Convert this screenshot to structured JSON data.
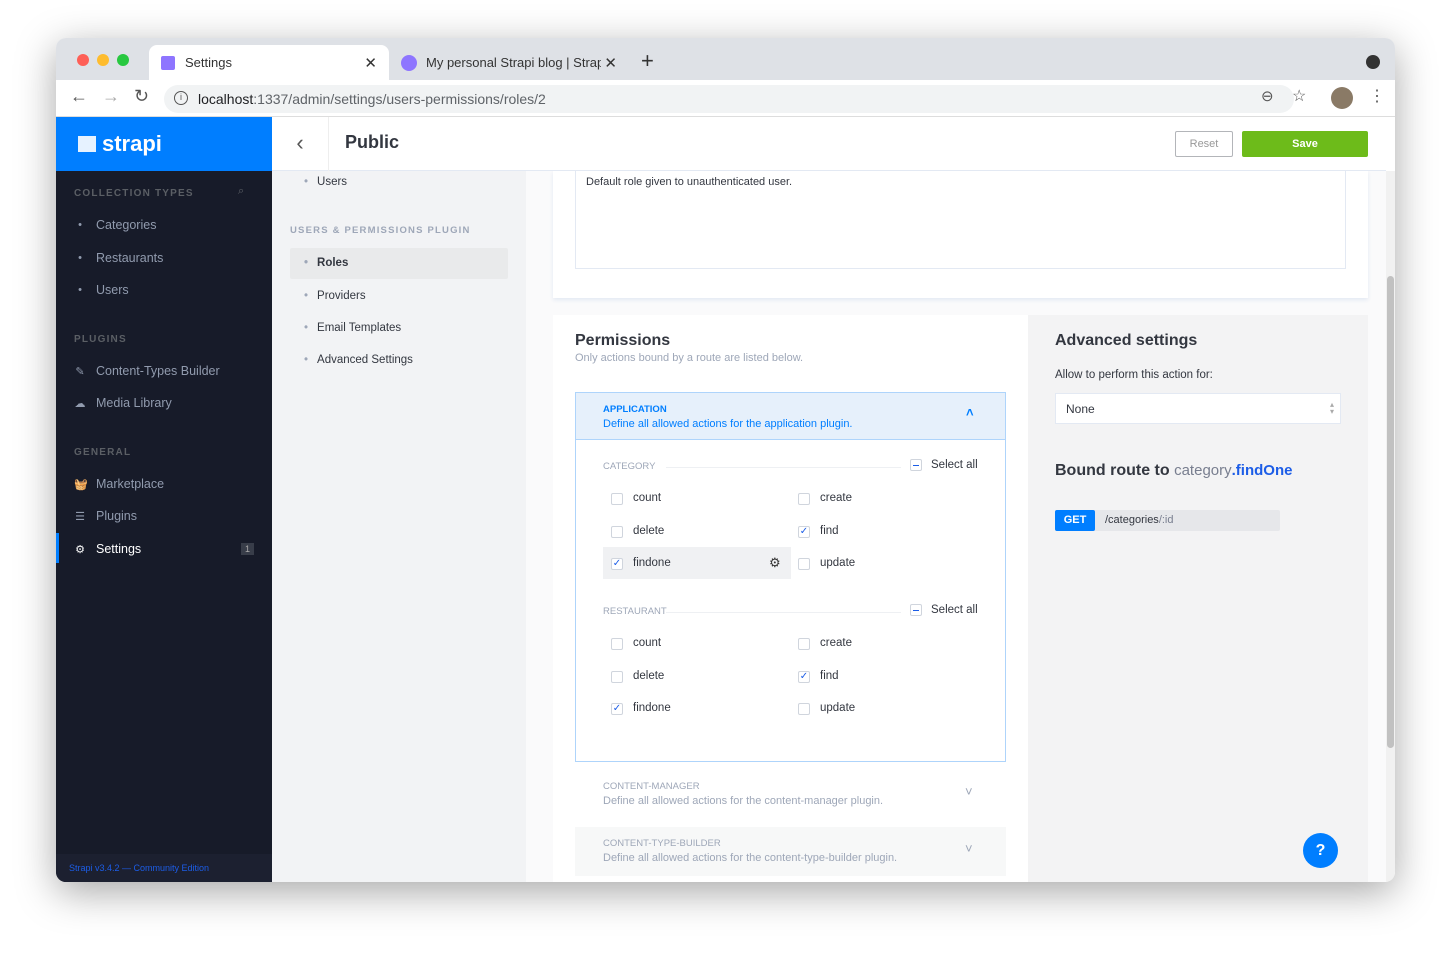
{
  "browser": {
    "tabs": [
      {
        "title": "Settings",
        "active": true
      },
      {
        "title": "My personal Strapi blog | Strap",
        "active": false
      }
    ],
    "url_host": "localhost",
    "url_path": ":1337/admin/settings/users-permissions/roles/2"
  },
  "sidebar": {
    "logo": "strapi",
    "sections": [
      {
        "title": "COLLECTION TYPES",
        "items": [
          "Categories",
          "Restaurants",
          "Users"
        ]
      },
      {
        "title": "PLUGINS",
        "items": [
          "Content-Types Builder",
          "Media Library"
        ]
      },
      {
        "title": "GENERAL",
        "items": [
          "Marketplace",
          "Plugins",
          "Settings"
        ]
      }
    ],
    "settings_badge": "1",
    "footer": "Strapi v3.4.2 — Community Edition"
  },
  "submenu": {
    "top_item": "Users",
    "section": "USERS & PERMISSIONS PLUGIN",
    "items": [
      "Roles",
      "Providers",
      "Email Templates",
      "Advanced Settings"
    ],
    "active": "Roles"
  },
  "header": {
    "title": "Public",
    "reset": "Reset",
    "save": "Save"
  },
  "role": {
    "description": "Default role given to unauthenticated user."
  },
  "permissions": {
    "title": "Permissions",
    "subtitle": "Only actions bound by a route are listed below.",
    "application": {
      "name": "APPLICATION",
      "desc": "Define all allowed actions for the application plugin.",
      "groups": [
        {
          "name": "CATEGORY",
          "select_all": "Select all",
          "actions": [
            {
              "label": "count",
              "checked": false
            },
            {
              "label": "create",
              "checked": false
            },
            {
              "label": "delete",
              "checked": false
            },
            {
              "label": "find",
              "checked": true
            },
            {
              "label": "findone",
              "checked": true
            },
            {
              "label": "update",
              "checked": false
            }
          ]
        },
        {
          "name": "RESTAURANT",
          "select_all": "Select all",
          "actions": [
            {
              "label": "count",
              "checked": false
            },
            {
              "label": "create",
              "checked": false
            },
            {
              "label": "delete",
              "checked": false
            },
            {
              "label": "find",
              "checked": true
            },
            {
              "label": "findone",
              "checked": true
            },
            {
              "label": "update",
              "checked": false
            }
          ]
        }
      ]
    },
    "others": [
      {
        "name": "CONTENT-MANAGER",
        "desc": "Define all allowed actions for the content-manager plugin."
      },
      {
        "name": "CONTENT-TYPE-BUILDER",
        "desc": "Define all allowed actions for the content-type-builder plugin."
      }
    ]
  },
  "advanced": {
    "title": "Advanced settings",
    "allow_label": "Allow to perform this action for:",
    "select_value": "None",
    "bound_prefix": "Bound route to",
    "bound_controller": "category",
    "bound_action": ".findOne",
    "method": "GET",
    "route_base": "/categories",
    "route_param": "/:id"
  },
  "help": "?",
  "colors": {
    "primary": "#007eff",
    "save": "#6dbb1a",
    "sidebar": "#171b29"
  }
}
